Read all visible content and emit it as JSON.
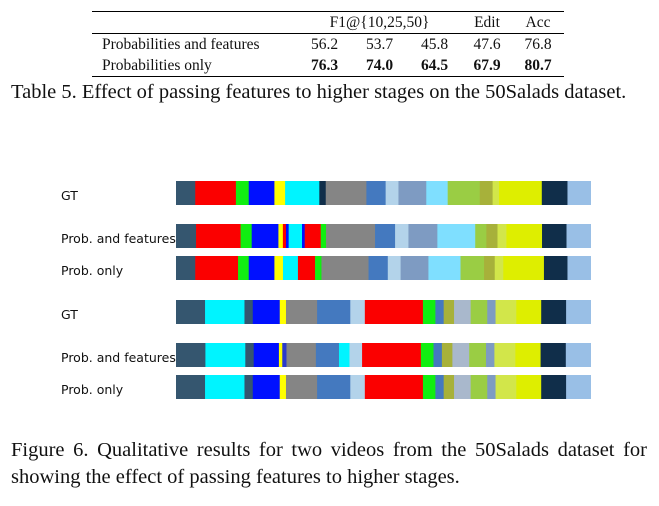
{
  "table": {
    "caption": "Table 5. Effect of passing features to higher stages on the 50Salads dataset.",
    "headers": [
      "",
      "F1@{10,25,50}",
      "Edit",
      "Acc"
    ],
    "rows": [
      {
        "label": "Probabilities and features",
        "values": [
          "56.2",
          "53.7",
          "45.8",
          "47.6",
          "76.8"
        ],
        "bold": false
      },
      {
        "label": "Probabilities only",
        "values": [
          "76.3",
          "74.0",
          "64.5",
          "67.9",
          "80.7"
        ],
        "bold": true
      }
    ]
  },
  "figure": {
    "caption": "Figure 6. Qualitative results for two videos from the 50Salads dataset for showing the effect of passing features to higher stages.",
    "colors": {
      "navy": "#35566f",
      "red": "#fb0000",
      "green": "#11ee11",
      "blue": "#0010ff",
      "yellow": "#ffff00",
      "cyan": "#00f4ff",
      "dkblue": "#2a3acc",
      "grey": "#858585",
      "midblue": "#4479bf",
      "lightblue": "#b3d3ea",
      "slate": "#7e9bc2",
      "skyblue": "#7fdfff",
      "lime": "#9acd44",
      "olive": "#a7b13a",
      "lightlime": "#d2e64a",
      "chartreuse": "#deee00",
      "darknavy": "#102e4a",
      "paleblue": "#99bfe6",
      "lavender": "#a9b8cc"
    },
    "videos": [
      {
        "rows": [
          {
            "label": "GT",
            "segments": [
              {
                "c": "navy",
                "d": 4.5
              },
              {
                "c": "red",
                "d": 9.5
              },
              {
                "c": "green",
                "d": 3
              },
              {
                "c": "blue",
                "d": 6
              },
              {
                "c": "yellow",
                "d": 2.5
              },
              {
                "c": "cyan",
                "d": 8
              },
              {
                "c": "darknavy",
                "d": 1.5
              },
              {
                "c": "grey",
                "d": 9.5
              },
              {
                "c": "midblue",
                "d": 4.5
              },
              {
                "c": "lightblue",
                "d": 3
              },
              {
                "c": "slate",
                "d": 6.5
              },
              {
                "c": "skyblue",
                "d": 5
              },
              {
                "c": "lime",
                "d": 7.5
              },
              {
                "c": "olive",
                "d": 3
              },
              {
                "c": "lightlime",
                "d": 1.5
              },
              {
                "c": "chartreuse",
                "d": 4
              },
              {
                "c": "chartreuse",
                "d": 6
              },
              {
                "c": "darknavy",
                "d": 6
              },
              {
                "c": "paleblue",
                "d": 5.5
              }
            ]
          },
          {
            "label": "Prob. and features",
            "segments": [
              {
                "c": "navy",
                "d": 4.5
              },
              {
                "c": "red",
                "d": 10
              },
              {
                "c": "green",
                "d": 2.5
              },
              {
                "c": "blue",
                "d": 6
              },
              {
                "c": "yellow",
                "d": 1
              },
              {
                "c": "red",
                "d": 0.7
              },
              {
                "c": "blue",
                "d": 0.6
              },
              {
                "c": "cyan",
                "d": 3
              },
              {
                "c": "blue",
                "d": 0.6
              },
              {
                "c": "red",
                "d": 3.6
              },
              {
                "c": "green",
                "d": 1.2
              },
              {
                "c": "grey",
                "d": 11
              },
              {
                "c": "midblue",
                "d": 4.5
              },
              {
                "c": "lightblue",
                "d": 3
              },
              {
                "c": "slate",
                "d": 6.5
              },
              {
                "c": "skyblue",
                "d": 8.5
              },
              {
                "c": "lime",
                "d": 2.5
              },
              {
                "c": "olive",
                "d": 2.5
              },
              {
                "c": "lightlime",
                "d": 2
              },
              {
                "c": "chartreuse",
                "d": 3.5
              },
              {
                "c": "chartreuse",
                "d": 4.5
              },
              {
                "c": "darknavy",
                "d": 5.5
              },
              {
                "c": "paleblue",
                "d": 5.5
              }
            ]
          },
          {
            "label": "Prob. only",
            "segments": [
              {
                "c": "navy",
                "d": 4.5
              },
              {
                "c": "red",
                "d": 10
              },
              {
                "c": "green",
                "d": 2.5
              },
              {
                "c": "blue",
                "d": 6
              },
              {
                "c": "yellow",
                "d": 2
              },
              {
                "c": "cyan",
                "d": 3.5
              },
              {
                "c": "red",
                "d": 4
              },
              {
                "c": "green",
                "d": 1.5
              },
              {
                "c": "grey",
                "d": 11
              },
              {
                "c": "midblue",
                "d": 4.5
              },
              {
                "c": "lightblue",
                "d": 3
              },
              {
                "c": "slate",
                "d": 6.5
              },
              {
                "c": "skyblue",
                "d": 7.5
              },
              {
                "c": "lime",
                "d": 5.5
              },
              {
                "c": "olive",
                "d": 2.5
              },
              {
                "c": "lightlime",
                "d": 2
              },
              {
                "c": "chartreuse",
                "d": 6.5
              },
              {
                "c": "chartreuse",
                "d": 3
              },
              {
                "c": "darknavy",
                "d": 5.5
              },
              {
                "c": "paleblue",
                "d": 5.5
              }
            ]
          }
        ]
      },
      {
        "rows": [
          {
            "label": "GT",
            "segments": [
              {
                "c": "navy",
                "d": 7
              },
              {
                "c": "cyan",
                "d": 9.5
              },
              {
                "c": "navy",
                "d": 2
              },
              {
                "c": "blue",
                "d": 6.5
              },
              {
                "c": "yellow",
                "d": 1.5
              },
              {
                "c": "grey",
                "d": 7.5
              },
              {
                "c": "midblue",
                "d": 8
              },
              {
                "c": "lightblue",
                "d": 3.5
              },
              {
                "c": "red",
                "d": 14
              },
              {
                "c": "green",
                "d": 3
              },
              {
                "c": "midblue",
                "d": 2
              },
              {
                "c": "olive",
                "d": 2.5
              },
              {
                "c": "lavender",
                "d": 4
              },
              {
                "c": "lime",
                "d": 4
              },
              {
                "c": "slate",
                "d": 2
              },
              {
                "c": "lightlime",
                "d": 5
              },
              {
                "c": "chartreuse",
                "d": 6
              },
              {
                "c": "darknavy",
                "d": 6
              },
              {
                "c": "paleblue",
                "d": 6
              }
            ]
          },
          {
            "label": "Prob. and features",
            "segments": [
              {
                "c": "navy",
                "d": 7
              },
              {
                "c": "cyan",
                "d": 9.5
              },
              {
                "c": "navy",
                "d": 2
              },
              {
                "c": "blue",
                "d": 6
              },
              {
                "c": "yellow",
                "d": 0.8
              },
              {
                "c": "dkblue",
                "d": 1
              },
              {
                "c": "grey",
                "d": 7
              },
              {
                "c": "midblue",
                "d": 5.5
              },
              {
                "c": "cyan",
                "d": 2.5
              },
              {
                "c": "lightblue",
                "d": 3
              },
              {
                "c": "red",
                "d": 14
              },
              {
                "c": "green",
                "d": 3
              },
              {
                "c": "midblue",
                "d": 2
              },
              {
                "c": "olive",
                "d": 2.5
              },
              {
                "c": "lavender",
                "d": 4
              },
              {
                "c": "lime",
                "d": 4
              },
              {
                "c": "slate",
                "d": 2
              },
              {
                "c": "lightlime",
                "d": 5
              },
              {
                "c": "chartreuse",
                "d": 6
              },
              {
                "c": "darknavy",
                "d": 6
              },
              {
                "c": "paleblue",
                "d": 6
              }
            ]
          },
          {
            "label": "Prob. only",
            "segments": [
              {
                "c": "navy",
                "d": 7
              },
              {
                "c": "cyan",
                "d": 9.5
              },
              {
                "c": "navy",
                "d": 2
              },
              {
                "c": "blue",
                "d": 6.5
              },
              {
                "c": "yellow",
                "d": 1.5
              },
              {
                "c": "grey",
                "d": 7.5
              },
              {
                "c": "midblue",
                "d": 8
              },
              {
                "c": "lightblue",
                "d": 3.5
              },
              {
                "c": "red",
                "d": 14
              },
              {
                "c": "green",
                "d": 3
              },
              {
                "c": "midblue",
                "d": 2
              },
              {
                "c": "olive",
                "d": 2.5
              },
              {
                "c": "lavender",
                "d": 4
              },
              {
                "c": "lime",
                "d": 4
              },
              {
                "c": "slate",
                "d": 2
              },
              {
                "c": "lightlime",
                "d": 5
              },
              {
                "c": "chartreuse",
                "d": 6
              },
              {
                "c": "darknavy",
                "d": 6
              },
              {
                "c": "paleblue",
                "d": 6
              }
            ]
          }
        ]
      }
    ]
  }
}
